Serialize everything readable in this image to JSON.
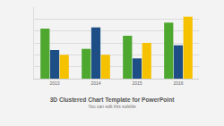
{
  "chart_data": {
    "type": "bar",
    "title": "3D Clustered Chart Template for PowerPoint",
    "subtitle": "You can edit this subtitle",
    "categories": [
      "2013",
      "2014",
      "2015",
      "2016"
    ],
    "series": [
      {
        "color": "#4ea72e",
        "values": [
          42,
          25,
          36,
          47
        ]
      },
      {
        "color": "#1d4f86",
        "values": [
          24,
          43,
          17,
          28
        ]
      },
      {
        "color": "#f6c200",
        "values": [
          20,
          20,
          30,
          52
        ]
      }
    ],
    "ylim": [
      0,
      60
    ],
    "yticks": [
      0,
      10,
      20,
      30,
      40,
      50,
      60
    ],
    "grid": true,
    "tick_labels": "x"
  }
}
